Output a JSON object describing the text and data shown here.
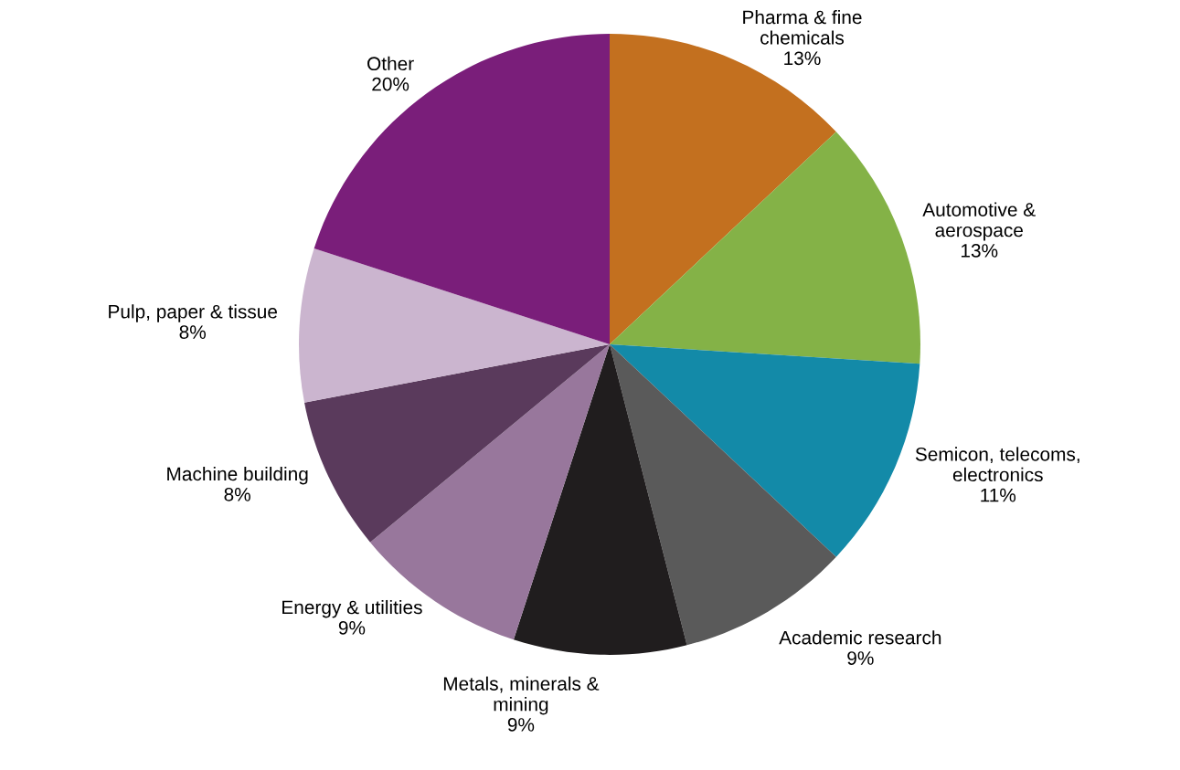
{
  "chart_data": {
    "type": "pie",
    "categories": [
      "Pharma & fine\nchemicals",
      "Automotive &\naerospace",
      "Semicon, telecoms,\nelectronics",
      "Academic research",
      "Metals, minerals &\nmining",
      "Energy & utilities",
      "Machine building",
      "Pulp, paper & tissue",
      "Other"
    ],
    "values": [
      13,
      13,
      11,
      9,
      9,
      9,
      8,
      8,
      20
    ],
    "value_labels": [
      "13%",
      "13%",
      "11%",
      "9%",
      "9%",
      "9%",
      "8%",
      "8%",
      "20%"
    ],
    "colors": [
      "#c3701f",
      "#84b247",
      "#138aa8",
      "#5a5a5a",
      "#201d1e",
      "#98779c",
      "#5a3a5c",
      "#cbb5cf",
      "#7a1e7a"
    ]
  }
}
